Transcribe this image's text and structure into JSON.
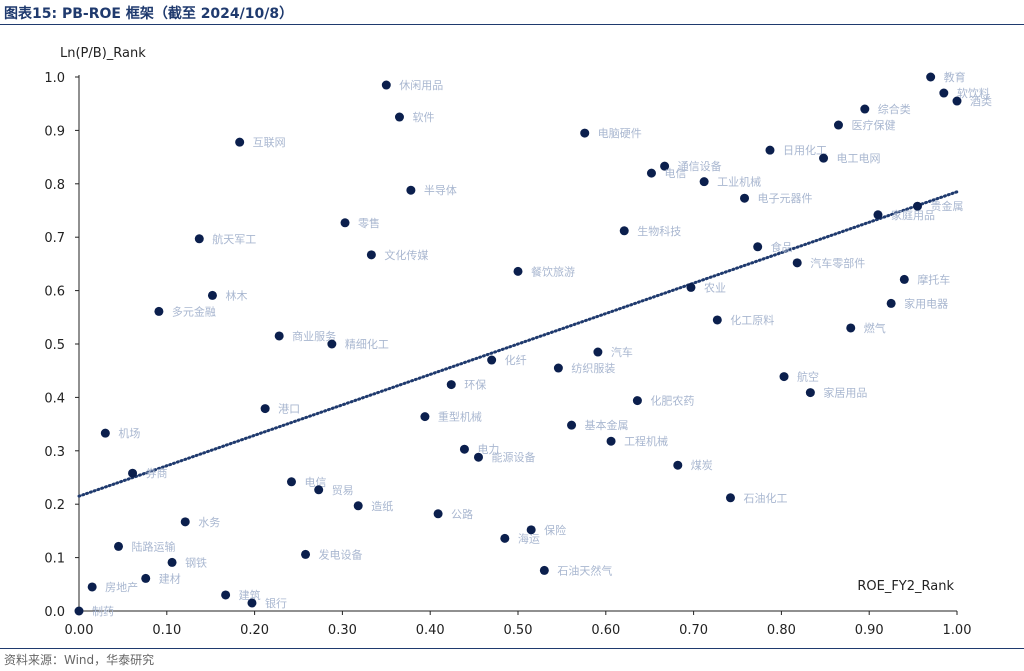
{
  "header": {
    "title": "图表15:  PB-ROE 框架（截至 2024/10/8）"
  },
  "footer": {
    "source": "资料来源：Wind，华泰研究"
  },
  "chart_data": {
    "type": "scatter",
    "xlabel": "ROE_FY2_Rank",
    "ylabel": "Ln(P/B)_Rank",
    "xlim": [
      0,
      1
    ],
    "ylim": [
      0,
      1
    ],
    "xticks": [
      "0.00",
      "0.10",
      "0.20",
      "0.30",
      "0.40",
      "0.50",
      "0.60",
      "0.70",
      "0.80",
      "0.90",
      "1.00"
    ],
    "yticks": [
      "0.0",
      "0.1",
      "0.2",
      "0.3",
      "0.4",
      "0.5",
      "0.6",
      "0.7",
      "0.8",
      "0.9",
      "1.0"
    ],
    "trendline": {
      "style": "dotted",
      "intercept": 0.215,
      "slope": 0.57
    },
    "marker_color": "#0b1f4d",
    "trend_color": "#1f3a6e",
    "label_color": "#a9b7d0",
    "grid": false,
    "points": [
      {
        "label": "教育",
        "x": 0.97,
        "y": 1.0
      },
      {
        "label": "软饮料",
        "x": 0.985,
        "y": 0.97
      },
      {
        "label": "酒类",
        "x": 1.0,
        "y": 0.955
      },
      {
        "label": "休闲用品",
        "x": 0.35,
        "y": 0.985
      },
      {
        "label": "软件",
        "x": 0.365,
        "y": 0.925
      },
      {
        "label": "综合类",
        "x": 0.895,
        "y": 0.94
      },
      {
        "label": "医疗保健",
        "x": 0.865,
        "y": 0.91
      },
      {
        "label": "互联网",
        "x": 0.183,
        "y": 0.878
      },
      {
        "label": "电脑硬件",
        "x": 0.576,
        "y": 0.895
      },
      {
        "label": "日用化工",
        "x": 0.787,
        "y": 0.863
      },
      {
        "label": "电工电网",
        "x": 0.848,
        "y": 0.848
      },
      {
        "label": "通信设备",
        "x": 0.667,
        "y": 0.833
      },
      {
        "label": "电信",
        "x": 0.652,
        "y": 0.82
      },
      {
        "label": "工业机械",
        "x": 0.712,
        "y": 0.804
      },
      {
        "label": "半导体",
        "x": 0.378,
        "y": 0.788
      },
      {
        "label": "电子元器件",
        "x": 0.758,
        "y": 0.773
      },
      {
        "label": "贵金属",
        "x": 0.955,
        "y": 0.758
      },
      {
        "label": "家庭用品",
        "x": 0.91,
        "y": 0.742
      },
      {
        "label": "零售",
        "x": 0.303,
        "y": 0.727
      },
      {
        "label": "生物科技",
        "x": 0.621,
        "y": 0.712
      },
      {
        "label": "航天军工",
        "x": 0.137,
        "y": 0.697
      },
      {
        "label": "食品",
        "x": 0.773,
        "y": 0.682
      },
      {
        "label": "文化传媒",
        "x": 0.333,
        "y": 0.667
      },
      {
        "label": "汽车零部件",
        "x": 0.818,
        "y": 0.652
      },
      {
        "label": "餐饮旅游",
        "x": 0.5,
        "y": 0.636
      },
      {
        "label": "摩托车",
        "x": 0.94,
        "y": 0.621
      },
      {
        "label": "农业",
        "x": 0.697,
        "y": 0.606
      },
      {
        "label": "林木",
        "x": 0.152,
        "y": 0.591
      },
      {
        "label": "家用电器",
        "x": 0.925,
        "y": 0.576
      },
      {
        "label": "多元金融",
        "x": 0.091,
        "y": 0.561
      },
      {
        "label": "化工原料",
        "x": 0.727,
        "y": 0.545
      },
      {
        "label": "燃气",
        "x": 0.879,
        "y": 0.53
      },
      {
        "label": "商业服务",
        "x": 0.228,
        "y": 0.515
      },
      {
        "label": "精细化工",
        "x": 0.288,
        "y": 0.5
      },
      {
        "label": "汽车",
        "x": 0.591,
        "y": 0.485
      },
      {
        "label": "化纤",
        "x": 0.47,
        "y": 0.47
      },
      {
        "label": "纺织服装",
        "x": 0.546,
        "y": 0.455
      },
      {
        "label": "航空",
        "x": 0.803,
        "y": 0.439
      },
      {
        "label": "环保",
        "x": 0.424,
        "y": 0.424
      },
      {
        "label": "家居用品",
        "x": 0.833,
        "y": 0.409
      },
      {
        "label": "化肥农药",
        "x": 0.636,
        "y": 0.394
      },
      {
        "label": "港口",
        "x": 0.212,
        "y": 0.379
      },
      {
        "label": "重型机械",
        "x": 0.394,
        "y": 0.364
      },
      {
        "label": "基本金属",
        "x": 0.561,
        "y": 0.348
      },
      {
        "label": "机场",
        "x": 0.03,
        "y": 0.333
      },
      {
        "label": "工程机械",
        "x": 0.606,
        "y": 0.318
      },
      {
        "label": "电力",
        "x": 0.439,
        "y": 0.303
      },
      {
        "label": "能源设备",
        "x": 0.455,
        "y": 0.288
      },
      {
        "label": "煤炭",
        "x": 0.682,
        "y": 0.273
      },
      {
        "label": "券商",
        "x": 0.061,
        "y": 0.258
      },
      {
        "label": "电信",
        "x": 0.242,
        "y": 0.242
      },
      {
        "label": "贸易",
        "x": 0.273,
        "y": 0.227
      },
      {
        "label": "石油化工",
        "x": 0.742,
        "y": 0.212
      },
      {
        "label": "造纸",
        "x": 0.318,
        "y": 0.197
      },
      {
        "label": "公路",
        "x": 0.409,
        "y": 0.182
      },
      {
        "label": "水务",
        "x": 0.121,
        "y": 0.167
      },
      {
        "label": "保险",
        "x": 0.515,
        "y": 0.152
      },
      {
        "label": "海运",
        "x": 0.485,
        "y": 0.136
      },
      {
        "label": "陆路运输",
        "x": 0.045,
        "y": 0.121
      },
      {
        "label": "发电设备",
        "x": 0.258,
        "y": 0.106
      },
      {
        "label": "钢铁",
        "x": 0.106,
        "y": 0.091
      },
      {
        "label": "石油天然气",
        "x": 0.53,
        "y": 0.076
      },
      {
        "label": "建材",
        "x": 0.076,
        "y": 0.061
      },
      {
        "label": "房地产",
        "x": 0.015,
        "y": 0.045
      },
      {
        "label": "建筑",
        "x": 0.167,
        "y": 0.03
      },
      {
        "label": "银行",
        "x": 0.197,
        "y": 0.015
      },
      {
        "label": "制药",
        "x": 0.0,
        "y": 0.0
      }
    ]
  }
}
